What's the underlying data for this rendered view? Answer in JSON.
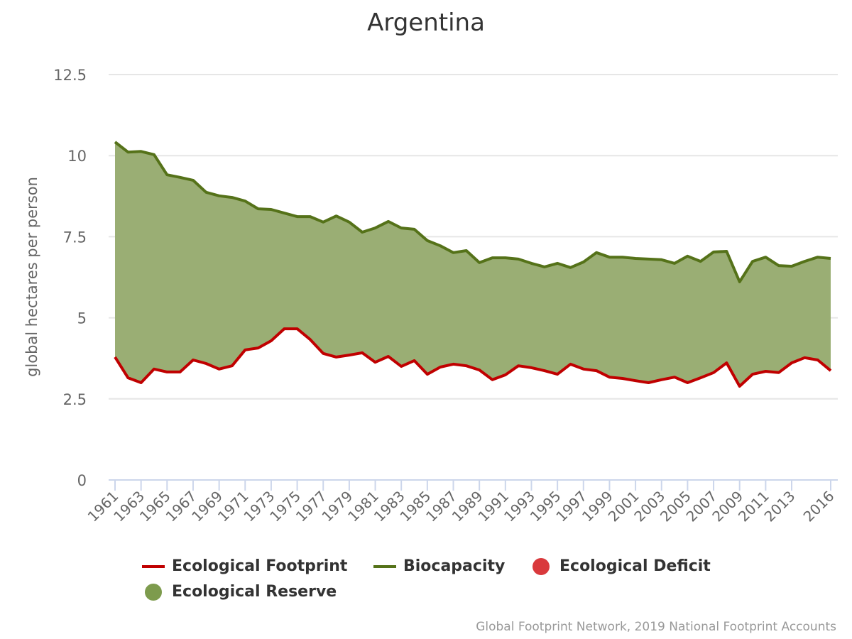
{
  "header": {
    "title": "Argentina"
  },
  "axes": {
    "ylabel": "global hectares per person"
  },
  "legend": {
    "items": [
      {
        "label": "Ecological Footprint",
        "kind": "line",
        "color": "#c00000"
      },
      {
        "label": "Biocapacity",
        "kind": "line",
        "color": "#557219"
      },
      {
        "label": "Ecological Deficit",
        "kind": "dot",
        "color": "#d9393c"
      },
      {
        "label": "Ecological Reserve",
        "kind": "dot",
        "color": "#7d9b4d"
      }
    ]
  },
  "credits": "Global Footprint Network, 2019 National Footprint Accounts",
  "colors": {
    "footprint": "#c00000",
    "biocapacity": "#557219",
    "reserve_fill": "#9aae74",
    "grid": "#e6e6e6",
    "axis_text": "#666666"
  },
  "chart_data": {
    "type": "area",
    "title": "Argentina",
    "xlabel": "",
    "ylabel": "global hectares per person",
    "ylim": [
      0,
      12.5
    ],
    "yticks": [
      0,
      2.5,
      5,
      7.5,
      10,
      12.5
    ],
    "ytick_labels": [
      "0",
      "2.5",
      "5",
      "7.5",
      "10",
      "12.5"
    ],
    "xtick_labels": [
      "1961",
      "1963",
      "1965",
      "1967",
      "1969",
      "1971",
      "1973",
      "1975",
      "1977",
      "1979",
      "1981",
      "1983",
      "1985",
      "1987",
      "1989",
      "1991",
      "1993",
      "1995",
      "1997",
      "1999",
      "2001",
      "2003",
      "2005",
      "2007",
      "2009",
      "2011",
      "2013",
      "2016"
    ],
    "grid": true,
    "legend_position": "bottom",
    "x": [
      1961,
      1962,
      1963,
      1964,
      1965,
      1966,
      1967,
      1968,
      1969,
      1970,
      1971,
      1972,
      1973,
      1974,
      1975,
      1976,
      1977,
      1978,
      1979,
      1980,
      1981,
      1982,
      1983,
      1984,
      1985,
      1986,
      1987,
      1988,
      1989,
      1990,
      1991,
      1992,
      1993,
      1994,
      1995,
      1996,
      1997,
      1998,
      1999,
      2000,
      2001,
      2002,
      2003,
      2004,
      2005,
      2006,
      2007,
      2008,
      2009,
      2010,
      2011,
      2012,
      2013,
      2014,
      2015,
      2016
    ],
    "series": [
      {
        "name": "Ecological Footprint",
        "values": [
          3.79,
          3.15,
          3.0,
          3.42,
          3.33,
          3.33,
          3.7,
          3.59,
          3.42,
          3.52,
          4.01,
          4.07,
          4.29,
          4.66,
          4.66,
          4.33,
          3.9,
          3.79,
          3.85,
          3.92,
          3.63,
          3.81,
          3.5,
          3.68,
          3.26,
          3.48,
          3.57,
          3.52,
          3.39,
          3.09,
          3.24,
          3.52,
          3.46,
          3.37,
          3.26,
          3.57,
          3.42,
          3.37,
          3.17,
          3.13,
          3.06,
          3.0,
          3.09,
          3.17,
          3.0,
          3.15,
          3.31,
          3.61,
          2.89,
          3.26,
          3.35,
          3.31,
          3.61,
          3.77,
          3.7,
          3.37
        ]
      },
      {
        "name": "Biocapacity",
        "values": [
          10.42,
          10.11,
          10.13,
          10.03,
          9.41,
          9.33,
          9.24,
          8.87,
          8.76,
          8.71,
          8.6,
          8.36,
          8.34,
          8.23,
          8.12,
          8.12,
          7.95,
          8.14,
          7.95,
          7.64,
          7.77,
          7.97,
          7.77,
          7.73,
          7.38,
          7.22,
          7.01,
          7.07,
          6.7,
          6.85,
          6.85,
          6.81,
          6.68,
          6.57,
          6.68,
          6.55,
          6.72,
          7.01,
          6.87,
          6.87,
          6.83,
          6.81,
          6.79,
          6.68,
          6.9,
          6.74,
          7.03,
          7.05,
          6.11,
          6.74,
          6.87,
          6.61,
          6.59,
          6.74,
          6.87,
          6.83
        ]
      }
    ],
    "annotations": [
      "Ecological Reserve (shaded area between Biocapacity and Footprint)"
    ]
  }
}
